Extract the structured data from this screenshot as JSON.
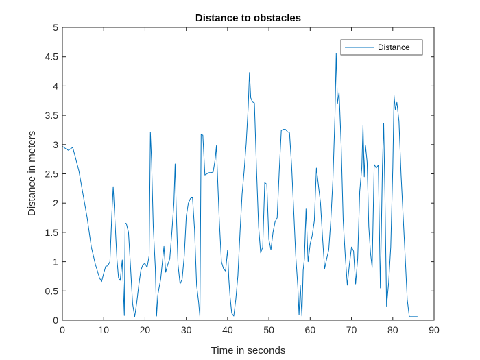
{
  "chart_data": {
    "type": "line",
    "title": "Distance to obstacles",
    "xlabel": "Time in seconds",
    "ylabel": "Distance in meters",
    "xlim": [
      0,
      90
    ],
    "ylim": [
      0,
      5
    ],
    "xticks": [
      0,
      10,
      20,
      30,
      40,
      50,
      60,
      70,
      80,
      90
    ],
    "yticks": [
      0,
      0.5,
      1,
      1.5,
      2,
      2.5,
      3,
      3.5,
      4,
      4.5,
      5
    ],
    "xtick_labels": [
      "0",
      "10",
      "20",
      "30",
      "40",
      "50",
      "60",
      "70",
      "80",
      "90"
    ],
    "ytick_labels": [
      "0",
      "0.5",
      "1",
      "1.5",
      "2",
      "2.5",
      "3",
      "3.5",
      "4",
      "4.5",
      "5"
    ],
    "grid": false,
    "legend_position": "top-right",
    "series": [
      {
        "name": "Distance",
        "color": "#0072BD",
        "x": [
          0,
          1,
          1.5,
          2,
          2.5,
          3,
          4,
          5,
          6,
          7,
          8,
          9,
          9.5,
          10,
          10.5,
          11,
          11.5,
          12,
          12.3,
          12.8,
          13.2,
          13.6,
          14,
          14.5,
          15,
          15.2,
          15.5,
          16,
          16.5,
          17,
          17.5,
          18,
          18.5,
          19,
          19.5,
          20,
          20.5,
          21,
          21.3,
          21.6,
          22,
          22.5,
          22.8,
          23.1,
          23.4,
          23.8,
          24.2,
          24.6,
          25,
          25.5,
          26,
          26.5,
          27,
          27.3,
          27.6,
          28,
          28.5,
          29,
          29.5,
          30,
          30.5,
          31,
          31.5,
          32,
          32.5,
          33,
          33.3,
          33.6,
          34,
          34.5,
          35,
          35.5,
          36,
          36.5,
          37,
          37.3,
          37.6,
          38,
          38.5,
          39,
          39.5,
          40,
          40.3,
          40.6,
          41,
          41.5,
          42,
          42.5,
          43,
          43.5,
          44,
          44.5,
          45,
          45.3,
          45.6,
          46,
          46.5,
          47,
          47.5,
          48,
          48.5,
          49,
          49.5,
          50,
          50.5,
          51,
          51.5,
          52,
          52.5,
          53,
          53.5,
          54,
          54.5,
          55,
          55.5,
          56,
          56.5,
          57,
          57.3,
          57.6,
          58,
          58.3,
          58.6,
          59,
          59.5,
          60,
          60.5,
          61,
          61.5,
          62,
          62.5,
          63,
          63.5,
          64,
          64.5,
          65,
          65.5,
          66,
          66.3,
          66.6,
          67,
          67.5,
          68,
          68.5,
          69,
          69.5,
          70,
          70.5,
          71,
          71.5,
          72,
          72.5,
          72.8,
          73.1,
          73.4,
          73.8,
          74.2,
          74.6,
          75,
          75.5,
          76,
          76.5,
          77,
          77.5,
          77.8,
          78.1,
          78.5,
          79,
          79.5,
          80,
          80.3,
          80.6,
          81,
          81.5,
          82,
          82.5,
          83,
          83.5,
          84,
          85,
          86
        ],
        "values": [
          2.97,
          2.92,
          2.9,
          2.93,
          2.95,
          2.82,
          2.55,
          2.15,
          1.75,
          1.25,
          0.95,
          0.72,
          0.66,
          0.8,
          0.92,
          0.93,
          1.0,
          1.85,
          2.28,
          1.6,
          1.05,
          0.72,
          0.68,
          1.03,
          0.08,
          1.66,
          1.65,
          1.5,
          0.9,
          0.28,
          0.06,
          0.3,
          0.6,
          0.85,
          0.95,
          0.97,
          0.9,
          1.1,
          3.21,
          2.7,
          1.6,
          0.9,
          0.07,
          0.42,
          0.55,
          0.7,
          0.98,
          1.26,
          0.82,
          0.95,
          1.05,
          1.5,
          2.0,
          2.67,
          1.8,
          0.95,
          0.62,
          0.7,
          1.1,
          1.78,
          2.0,
          2.08,
          2.1,
          1.55,
          0.6,
          0.3,
          0.06,
          3.17,
          3.16,
          2.48,
          2.5,
          2.52,
          2.52,
          2.53,
          2.75,
          2.98,
          2.4,
          1.7,
          1.0,
          0.88,
          0.84,
          1.2,
          0.7,
          0.4,
          0.12,
          0.07,
          0.36,
          0.76,
          1.5,
          2.15,
          2.55,
          3.02,
          3.65,
          4.23,
          3.8,
          3.73,
          3.71,
          2.6,
          1.6,
          1.15,
          1.25,
          2.35,
          2.32,
          1.38,
          1.2,
          1.5,
          1.68,
          1.75,
          2.55,
          3.24,
          3.26,
          3.26,
          3.22,
          3.2,
          2.65,
          1.9,
          1.1,
          0.58,
          0.09,
          0.6,
          0.07,
          0.85,
          1.05,
          1.9,
          1.0,
          1.3,
          1.45,
          1.7,
          2.6,
          2.3,
          2.0,
          1.4,
          0.88,
          1.05,
          1.2,
          1.7,
          2.4,
          3.5,
          4.56,
          3.7,
          3.9,
          3.0,
          1.7,
          1.1,
          0.6,
          0.95,
          1.25,
          1.18,
          0.62,
          1.05,
          2.2,
          2.6,
          3.33,
          2.45,
          2.98,
          2.7,
          1.6,
          1.15,
          0.9,
          2.66,
          2.6,
          2.65,
          0.55,
          2.63,
          3.36,
          2.2,
          0.24,
          0.65,
          1.25,
          2.6,
          3.84,
          3.6,
          3.72,
          3.4,
          2.5,
          1.8,
          1.1,
          0.35,
          0.06,
          0.06,
          0.06
        ]
      }
    ]
  }
}
